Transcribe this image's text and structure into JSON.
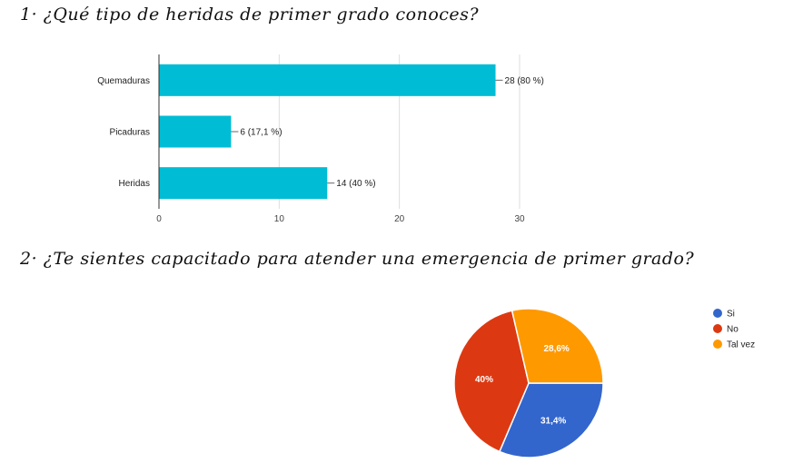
{
  "questions": {
    "q1": "1· ¿Qué tipo de heridas de primer grado conoces?",
    "q2": "2· ¿Te sientes capacitado para atender una emergencia de primer grado?"
  },
  "chart_data": [
    {
      "type": "bar",
      "orientation": "horizontal",
      "title": "1· ¿Qué tipo de heridas de primer grado conoces?",
      "categories": [
        "Quemaduras",
        "Picaduras",
        "Heridas"
      ],
      "values": [
        28,
        6,
        14
      ],
      "data_labels": [
        "28 (80 %)",
        "6 (17,1 %)",
        "14 (40 %)"
      ],
      "xlim": [
        0,
        30
      ],
      "xticks": [
        0,
        10,
        20,
        30
      ],
      "color": "#00bcd4",
      "grid": true
    },
    {
      "type": "pie",
      "title": "2· ¿Te sientes capacitado para atender una emergencia de primer grado?",
      "labels": [
        "Si",
        "No",
        "Tal vez"
      ],
      "values": [
        31.4,
        40,
        28.6
      ],
      "data_labels": [
        "31,4%",
        "40%",
        "28,6%"
      ],
      "colors": [
        "#3366cc",
        "#dc3912",
        "#ff9900"
      ],
      "legend": "right"
    }
  ]
}
